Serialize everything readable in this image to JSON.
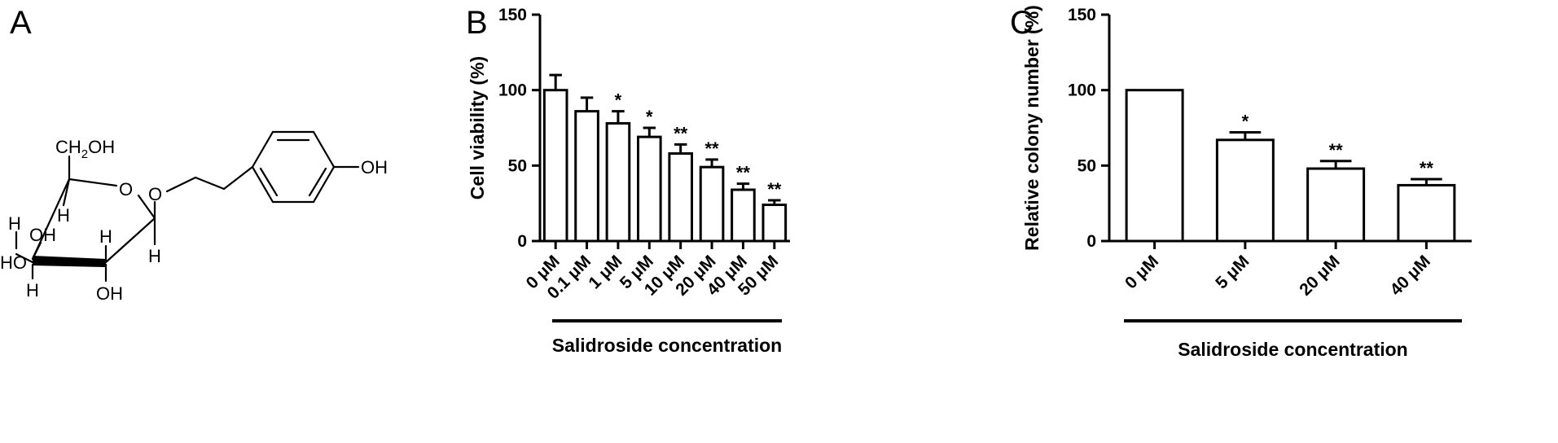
{
  "panels": {
    "a": {
      "letter": "A",
      "labels": {
        "ch2oh_ch": "CH",
        "ch2oh_sub": "2",
        "ch2oh_oh": "OH",
        "ring_o": "O",
        "glyco_o": "O",
        "phenol_oh": "OH",
        "h_c5": "H",
        "h_c4_top": "H",
        "oh_c3": "OH",
        "h_c2": "H",
        "h_c1": "H",
        "ho_c4": "HO",
        "h_c4_bottom": "H",
        "oh_c2": "OH"
      }
    },
    "b": {
      "letter": "B"
    },
    "c": {
      "letter": "C"
    }
  },
  "chart_data": [
    {
      "type": "bar",
      "panel": "B",
      "categories": [
        "0 μM",
        "0.1 μM",
        "1 μM",
        "5 μM",
        "10 μM",
        "20 μM",
        "40 μM",
        "50 μM"
      ],
      "values": [
        100,
        86,
        78,
        69,
        58,
        49,
        34,
        24
      ],
      "errors": [
        10,
        9,
        8,
        6,
        6,
        5,
        4,
        3
      ],
      "significance": [
        "",
        "",
        "*",
        "*",
        "**",
        "**",
        "**",
        "**"
      ],
      "ylabel": "Cell viability (%)",
      "xlabel": "Salidroside concentration",
      "ylim": [
        0,
        150
      ],
      "yticks": [
        0,
        50,
        100,
        150
      ],
      "grid": false,
      "bar_fill": "#ffffff",
      "bar_stroke": "#000000"
    },
    {
      "type": "bar",
      "panel": "C",
      "categories": [
        "0 μM",
        "5 μM",
        "20 μM",
        "40 μM"
      ],
      "values": [
        100,
        67,
        48,
        37
      ],
      "errors": [
        0,
        5,
        5,
        4
      ],
      "significance": [
        "",
        "*",
        "**",
        "**"
      ],
      "ylabel": "Relative colony number (%)",
      "xlabel": "Salidroside concentration",
      "ylim": [
        0,
        150
      ],
      "yticks": [
        0,
        50,
        100,
        150
      ],
      "grid": false,
      "bar_fill": "#ffffff",
      "bar_stroke": "#000000"
    }
  ]
}
